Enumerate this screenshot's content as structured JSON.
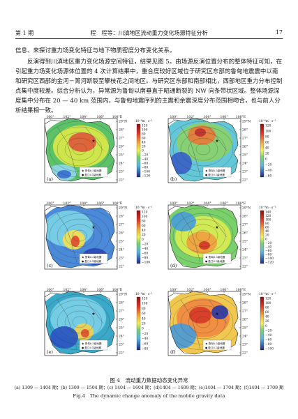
{
  "header": {
    "issue": "第 1 期",
    "running_title": "程　程等：川滇地区流动重力变化场源特征分析",
    "page_number": "17"
  },
  "body": {
    "paragraph_1": "信息、来探讨重力场变化特征与地下物质密度分布变化关系。",
    "paragraph_2": "反演得到川滇地区重力变化场源空间特征，结果见图 5。由场源反演位置分布的整体特征可知，在引起重力场变化场源体位置的 4 次计算结果中，重合度较好区域位于研究区东部的鲁甸地震震中以南和研究区西部的金河－箐河断裂至攀枝花之间地区。与研究区东部和南部相比，西部地区重力分布控制点集中度较差。综合分析认为，异常源为鲁甸以南垂直于昭通断裂的 NW 向条带状区域。整体场源深度集中分布在 20 — 40 km 范围内，与鲁甸地震序列的主震和余震深度分布范围相吻合，也与前人分析结果相一致。"
  },
  "figure": {
    "x_ticks": [
      "100°",
      "102°",
      "104°",
      "106°",
      "108°E"
    ],
    "y_ticks": [
      "29°N",
      "28°",
      "27°",
      "26°",
      "25°",
      "24°",
      "23°",
      "22°"
    ],
    "unit_label": "10⁻⁸m · s⁻²",
    "legend_items": [
      "鲁甸6.5级地震",
      "盈江6.1级地震"
    ],
    "panels": [
      {
        "label": "(a)",
        "scale": [
          "120",
          "100",
          "80",
          "60",
          "40",
          "20",
          "0",
          "−20",
          "−40",
          "−60",
          "−80",
          "−100",
          "−120"
        ]
      },
      {
        "label": "(b)",
        "scale": [
          "120",
          "100",
          "80",
          "60",
          "40",
          "20",
          "0",
          "−20",
          "−40",
          "−60"
        ]
      },
      {
        "label": "(c)",
        "scale": [
          "120",
          "100",
          "80",
          "60",
          "40",
          "20",
          "0",
          "−20",
          "−40",
          "−60",
          "−80",
          "−100"
        ]
      },
      {
        "label": "(d)",
        "scale": [
          "140",
          "120",
          "100",
          "80",
          "60",
          "40",
          "20",
          "0",
          "−20",
          "−40",
          "−60",
          "−80",
          "−100",
          "−120"
        ]
      },
      {
        "label": "(e)",
        "scale": [
          "120",
          "100",
          "80",
          "60",
          "40",
          "20",
          "0",
          "−20",
          "−40",
          "−60",
          "−80"
        ]
      },
      {
        "label": "(f)",
        "scale": [
          "120",
          "100",
          "80",
          "60",
          "40",
          "20",
          "0",
          "−20",
          "−40",
          "−60",
          "−80",
          "−100"
        ]
      }
    ],
    "caption_cn": "图 4　流动重力数据动态变化异常",
    "caption_sub": "(a) 1309 — 1404 期；(b) 1309 — 1504 期；(c) 1404 — 1604 期；(d)1404 — 1609 期；(e)1404 — 1704 期；(f)1404 — 1709 期",
    "caption_en": "Fig.4　The dynamic change anomaly of the mobile gravity data"
  }
}
